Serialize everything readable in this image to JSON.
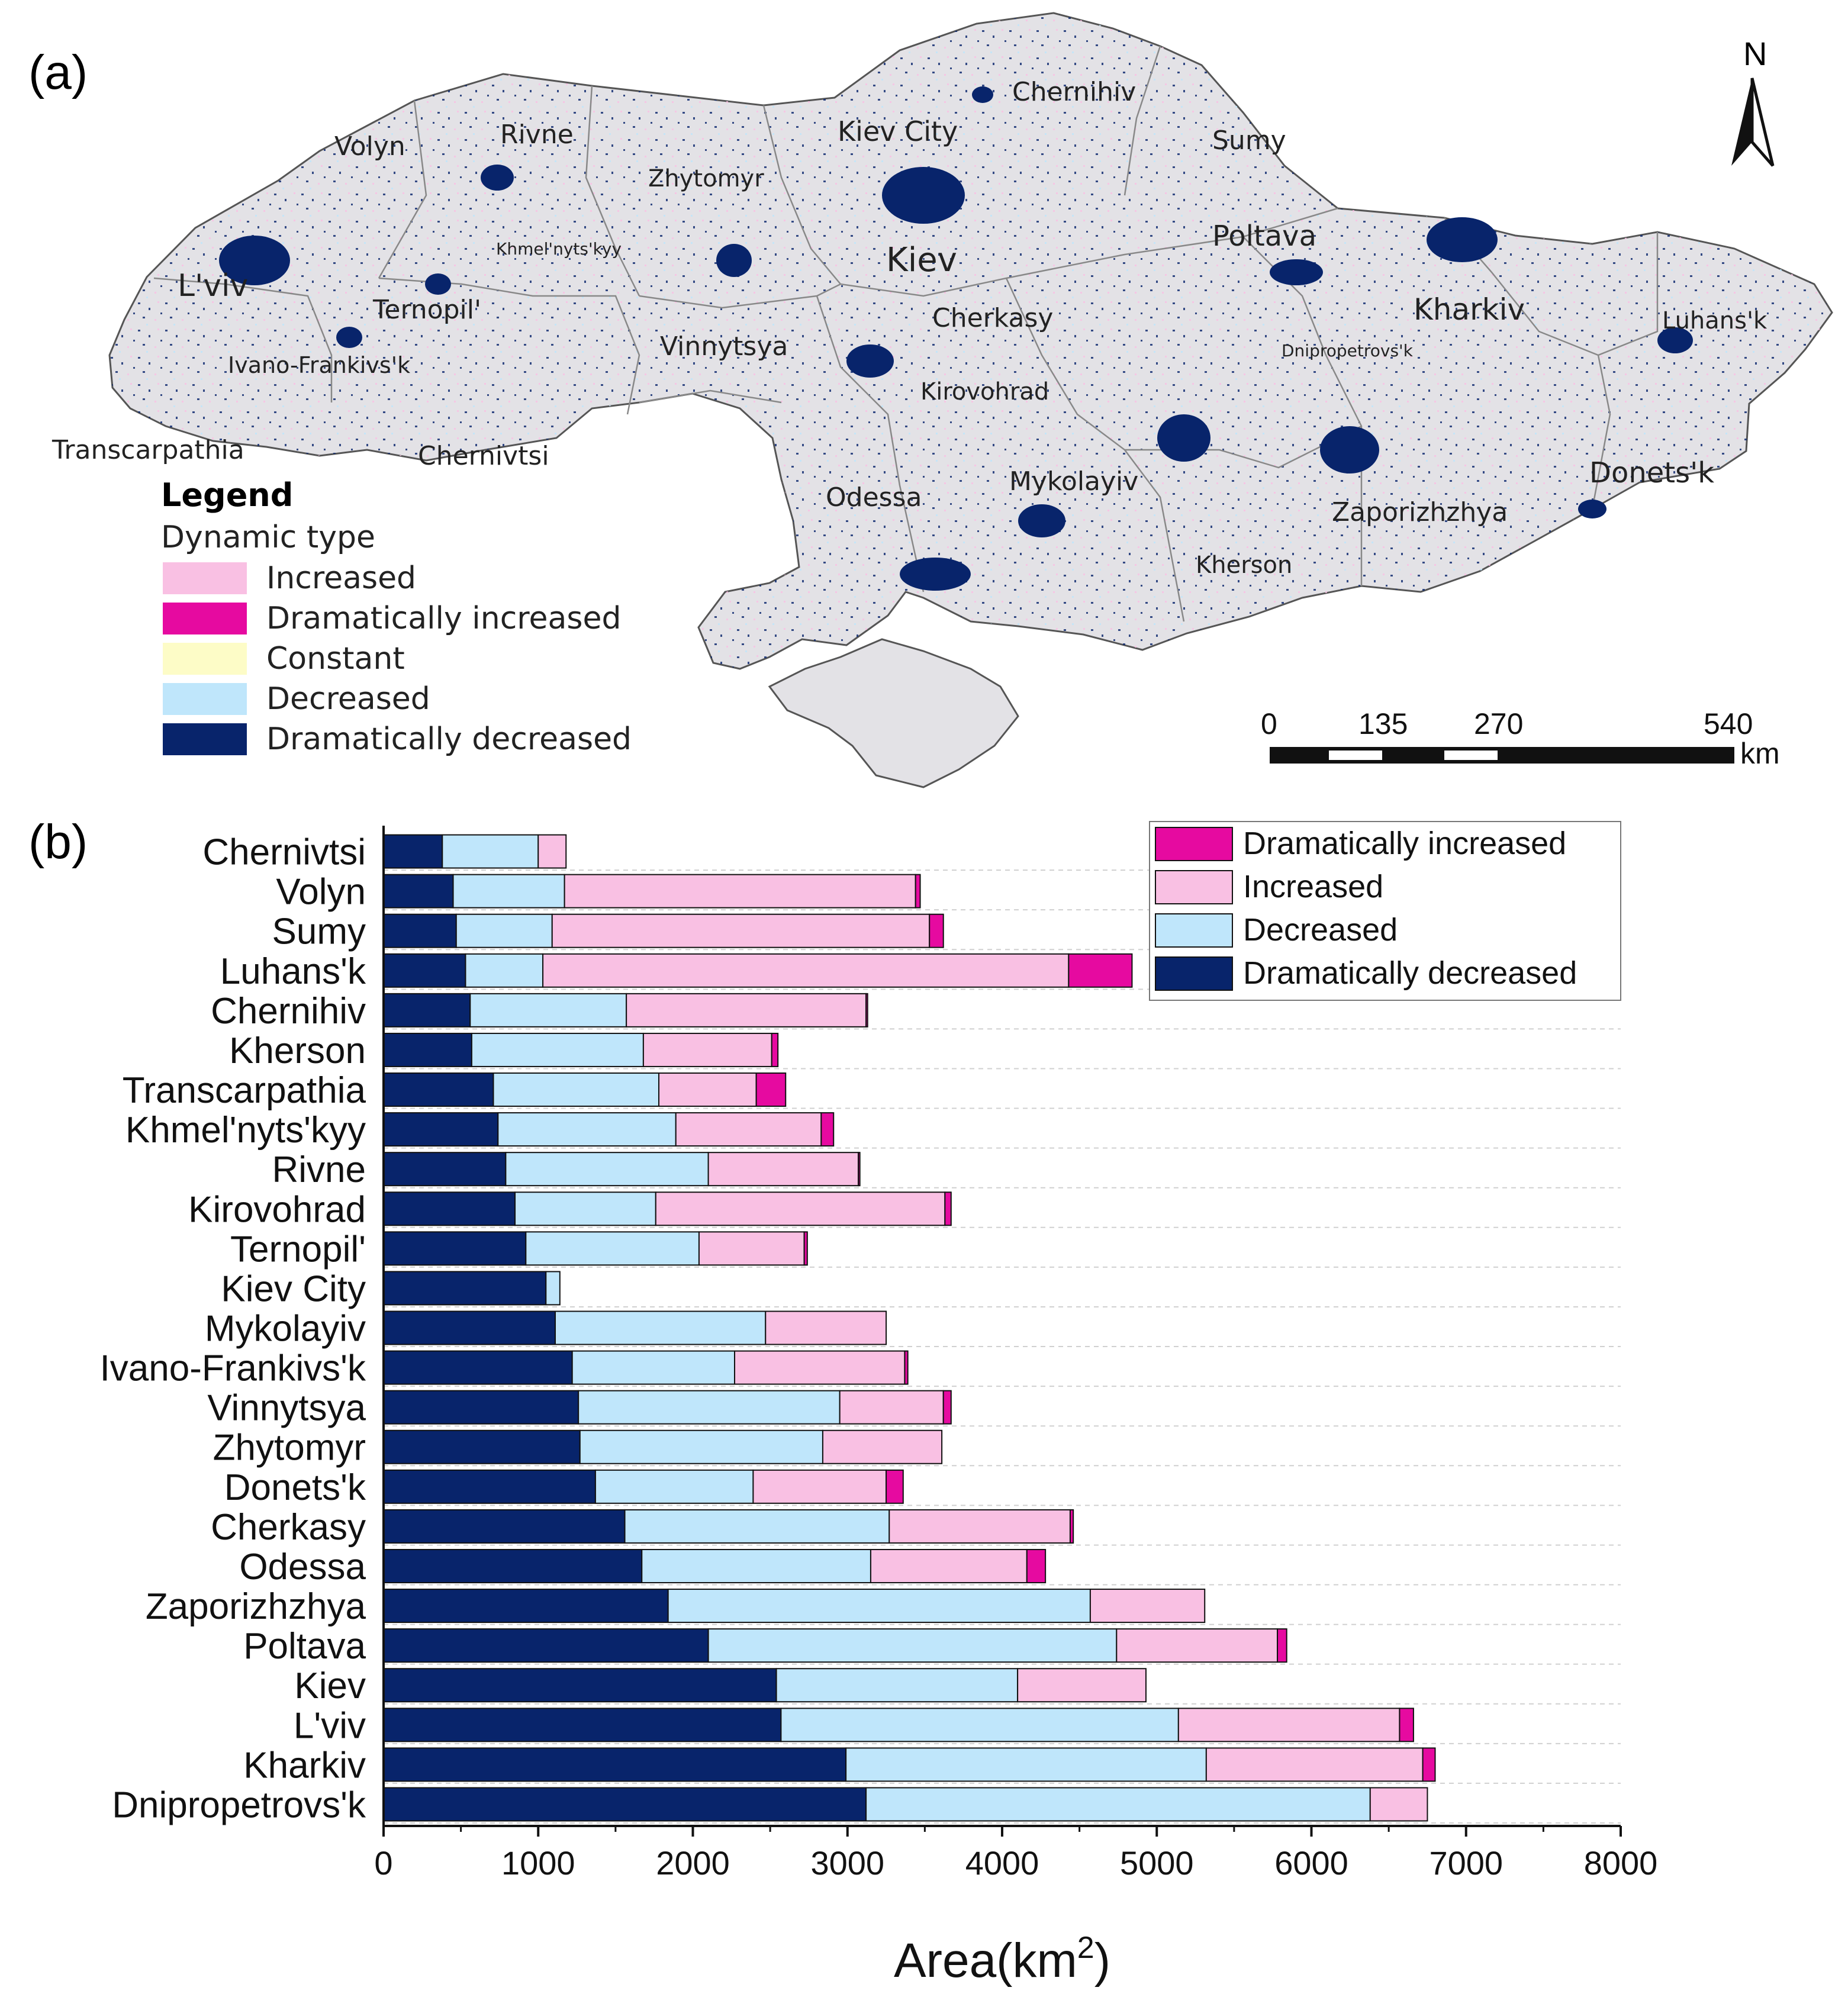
{
  "panel_a": {
    "label": "(a)",
    "north_label": "N",
    "regions": [
      "Volyn",
      "Rivne",
      "Zhytomyr",
      "Kiev City",
      "Chernihiv",
      "Sumy",
      "Khmel'nyts'kyy",
      "L'viv",
      "Ternopil'",
      "Ivano-Frankivs'k",
      "Transcarpathia",
      "Chernivtsi",
      "Vinnytsya",
      "Kiev",
      "Cherkasy",
      "Kirovohrad",
      "Poltava",
      "Kharkiv",
      "Dnipropetrovs'k",
      "Luhans'k",
      "Donets'k",
      "Zaporizhzhya",
      "Mykolayiv",
      "Odessa",
      "Kherson"
    ],
    "legend": {
      "title": "Legend",
      "subtitle": "Dynamic type",
      "items": [
        {
          "label": "Increased",
          "color": "#f9c0e3"
        },
        {
          "label": "Dramatically increased",
          "color": "#e60aa0"
        },
        {
          "label": "Constant",
          "color": "#fdfcc7"
        },
        {
          "label": "Decreased",
          "color": "#bfe6fb"
        },
        {
          "label": "Dramatically decreased",
          "color": "#08246b"
        }
      ]
    },
    "scale_bar": {
      "ticks": [
        "0",
        "135",
        "270",
        "540"
      ],
      "unit": "km"
    }
  },
  "panel_b_label": "(b)",
  "chart_data": {
    "type": "bar",
    "orientation": "horizontal",
    "stacked": true,
    "categories": [
      "Chernivtsi",
      "Volyn",
      "Sumy",
      "Luhans'k",
      "Chernihiv",
      "Kherson",
      "Transcarpathia",
      "Khmel'nyts'kyy",
      "Rivne",
      "Kirovohrad",
      "Ternopil'",
      "Kiev City",
      "Mykolayiv",
      "Ivano-Frankivs'k",
      "Vinnytsya",
      "Zhytomyr",
      "Donets'k",
      "Cherkasy",
      "Odessa",
      "Zaporizhzhya",
      "Poltava",
      "Kiev",
      "L'viv",
      "Kharkiv",
      "Dnipropetrovs'k"
    ],
    "series": [
      {
        "name": "Dramatically decreased",
        "color": "#08246b",
        "values": [
          380,
          450,
          470,
          530,
          560,
          570,
          710,
          740,
          790,
          850,
          920,
          1050,
          1110,
          1220,
          1260,
          1270,
          1370,
          1560,
          1670,
          1840,
          2100,
          2540,
          2570,
          2990,
          3120
        ]
      },
      {
        "name": "Decreased",
        "color": "#bfe6fb",
        "values": [
          620,
          720,
          620,
          500,
          1010,
          1110,
          1070,
          1150,
          1310,
          910,
          1120,
          90,
          1360,
          1050,
          1690,
          1570,
          1020,
          1710,
          1480,
          2730,
          2640,
          1560,
          2570,
          2330,
          3260
        ]
      },
      {
        "name": "Increased",
        "color": "#f9c0e3",
        "values": [
          180,
          2270,
          2440,
          3400,
          1550,
          830,
          630,
          940,
          970,
          1870,
          680,
          0,
          780,
          1100,
          670,
          770,
          860,
          1170,
          1010,
          740,
          1040,
          830,
          1430,
          1400,
          370
        ]
      },
      {
        "name": "Dramatically increased",
        "color": "#e60aa0",
        "values": [
          0,
          30,
          90,
          410,
          10,
          40,
          190,
          80,
          10,
          40,
          20,
          0,
          0,
          20,
          50,
          0,
          110,
          20,
          120,
          0,
          60,
          0,
          90,
          80,
          0
        ]
      }
    ],
    "legend_order": [
      "Dramatically increased",
      "Increased",
      "Decreased",
      "Dramatically decreased"
    ],
    "legend_position": "top-right",
    "xlabel": "Area(km",
    "xlabel_sup": "2",
    "xlabel_close": ")",
    "xlim": [
      0,
      8000
    ],
    "xticks": [
      0,
      1000,
      2000,
      3000,
      4000,
      5000,
      6000,
      7000,
      8000
    ],
    "grid": "horizontal dashed"
  }
}
